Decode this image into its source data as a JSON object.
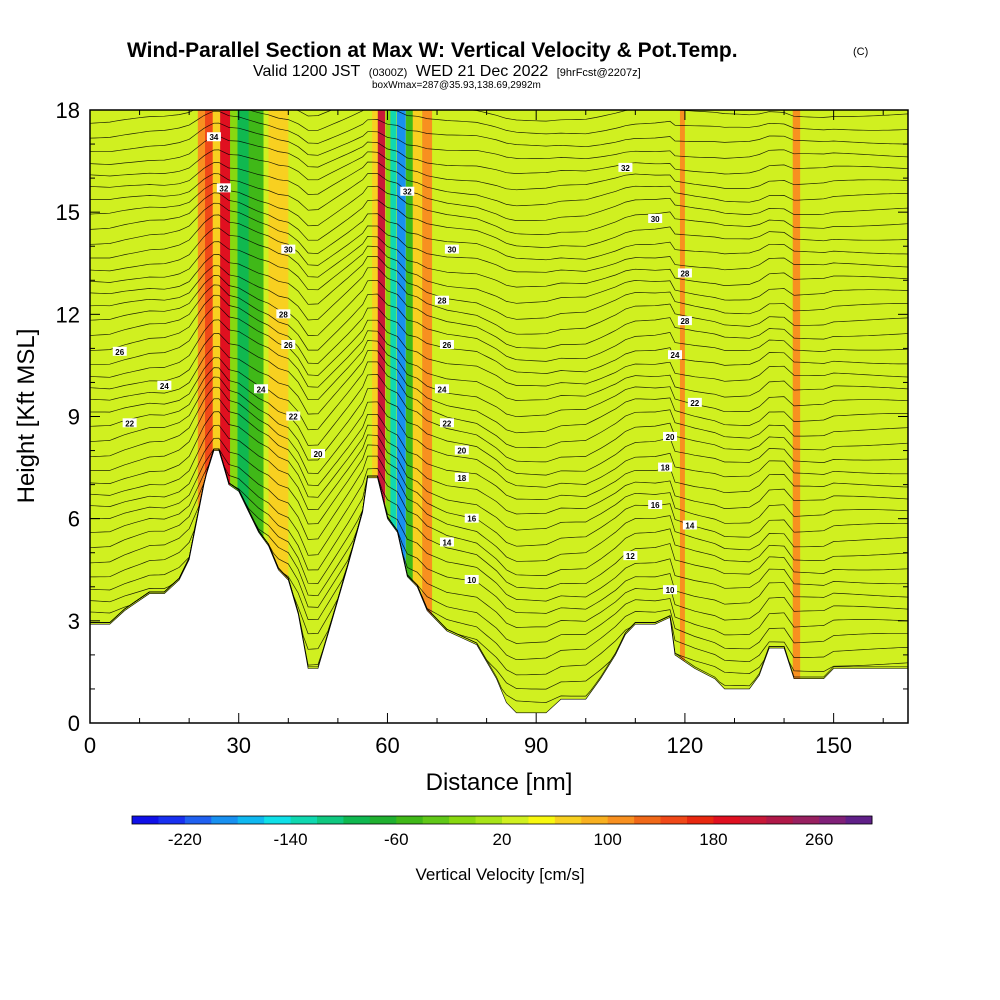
{
  "chart_data": {
    "type": "heatmap",
    "title": "Wind-Parallel Section at Max W: Vertical Velocity & Pot.Temp.",
    "title_mark": "(C)",
    "subtitle": {
      "valid": "Valid 1200 JST",
      "utc": "(0300Z)",
      "date": "WED 21 Dec 2022",
      "run": "[9hrFcst@2207z]"
    },
    "box_info": "boxWmax=287@35.93,138.69,2992m",
    "xlabel": "Distance [nm]",
    "ylabel": "Height [Kft MSL]",
    "xlim": [
      0,
      165
    ],
    "ylim": [
      0,
      18
    ],
    "x_ticks": [
      0,
      30,
      60,
      90,
      120,
      150
    ],
    "y_ticks": [
      0,
      3,
      6,
      9,
      12,
      15,
      18
    ],
    "background_w": 20,
    "terrain": [
      {
        "x": 0,
        "y": 2.9
      },
      {
        "x": 4,
        "y": 2.9
      },
      {
        "x": 7,
        "y": 3.3
      },
      {
        "x": 10,
        "y": 3.6
      },
      {
        "x": 12,
        "y": 3.8
      },
      {
        "x": 15,
        "y": 3.8
      },
      {
        "x": 18,
        "y": 4.2
      },
      {
        "x": 20,
        "y": 4.8
      },
      {
        "x": 23,
        "y": 7.0
      },
      {
        "x": 23.5,
        "y": 7.3
      },
      {
        "x": 25,
        "y": 8.0
      },
      {
        "x": 26,
        "y": 8.0
      },
      {
        "x": 27,
        "y": 7.5
      },
      {
        "x": 28,
        "y": 7.0
      },
      {
        "x": 30,
        "y": 6.8
      },
      {
        "x": 32,
        "y": 6.2
      },
      {
        "x": 34,
        "y": 5.6
      },
      {
        "x": 36,
        "y": 5.2
      },
      {
        "x": 38,
        "y": 4.5
      },
      {
        "x": 40,
        "y": 4.2
      },
      {
        "x": 42,
        "y": 3.2
      },
      {
        "x": 43,
        "y": 2.4
      },
      {
        "x": 44,
        "y": 1.6
      },
      {
        "x": 46,
        "y": 1.6
      },
      {
        "x": 48,
        "y": 2.6
      },
      {
        "x": 50,
        "y": 3.6
      },
      {
        "x": 52,
        "y": 4.6
      },
      {
        "x": 55,
        "y": 6.2
      },
      {
        "x": 56,
        "y": 7.2
      },
      {
        "x": 58,
        "y": 7.2
      },
      {
        "x": 60,
        "y": 6.0
      },
      {
        "x": 62,
        "y": 5.6
      },
      {
        "x": 64,
        "y": 4.3
      },
      {
        "x": 66,
        "y": 4.0
      },
      {
        "x": 68,
        "y": 3.3
      },
      {
        "x": 70,
        "y": 3.0
      },
      {
        "x": 72,
        "y": 2.7
      },
      {
        "x": 75,
        "y": 2.5
      },
      {
        "x": 78,
        "y": 2.3
      },
      {
        "x": 80,
        "y": 1.8
      },
      {
        "x": 82,
        "y": 1.3
      },
      {
        "x": 84,
        "y": 0.6
      },
      {
        "x": 86,
        "y": 0.3
      },
      {
        "x": 92,
        "y": 0.3
      },
      {
        "x": 95,
        "y": 0.7
      },
      {
        "x": 100,
        "y": 0.7
      },
      {
        "x": 103,
        "y": 1.3
      },
      {
        "x": 106,
        "y": 2.0
      },
      {
        "x": 108,
        "y": 2.6
      },
      {
        "x": 110,
        "y": 2.9
      },
      {
        "x": 114,
        "y": 2.9
      },
      {
        "x": 117,
        "y": 3.1
      },
      {
        "x": 118,
        "y": 2.0
      },
      {
        "x": 120,
        "y": 1.8
      },
      {
        "x": 122,
        "y": 1.6
      },
      {
        "x": 126,
        "y": 1.3
      },
      {
        "x": 128,
        "y": 1.0
      },
      {
        "x": 133,
        "y": 1.0
      },
      {
        "x": 135,
        "y": 1.4
      },
      {
        "x": 137,
        "y": 2.2
      },
      {
        "x": 140,
        "y": 2.2
      },
      {
        "x": 142,
        "y": 1.3
      },
      {
        "x": 145,
        "y": 1.3
      },
      {
        "x": 148,
        "y": 1.3
      },
      {
        "x": 150,
        "y": 1.6
      },
      {
        "x": 165,
        "y": 1.6
      }
    ],
    "vertical_velocity_bands": [
      {
        "x": 22.5,
        "width": 1.5,
        "w": 100
      },
      {
        "x": 24.2,
        "width": 2.0,
        "w": 140
      },
      {
        "x": 25.5,
        "width": 1.5,
        "w": 60
      },
      {
        "x": 27.5,
        "width": 2.5,
        "w": 180
      },
      {
        "x": 29.5,
        "width": 2.5,
        "w": -20
      },
      {
        "x": 31.0,
        "width": 2.5,
        "w": -100
      },
      {
        "x": 33.5,
        "width": 3.0,
        "w": -60
      },
      {
        "x": 38.0,
        "width": 4.0,
        "w": 60
      },
      {
        "x": 57.5,
        "width": 1.2,
        "w": 60
      },
      {
        "x": 58.8,
        "width": 1.5,
        "w": 200
      },
      {
        "x": 60.3,
        "width": 1.2,
        "w": -20
      },
      {
        "x": 61.2,
        "width": 1.2,
        "w": -140
      },
      {
        "x": 62.8,
        "width": 1.8,
        "w": -200
      },
      {
        "x": 64.5,
        "width": 1.5,
        "w": -60
      },
      {
        "x": 66.0,
        "width": 1.8,
        "w": 60
      },
      {
        "x": 68.0,
        "width": 2.0,
        "w": 100
      },
      {
        "x": 119.5,
        "width": 1.0,
        "w": 100
      },
      {
        "x": 142.5,
        "width": 1.5,
        "w": 100
      }
    ],
    "theta_contour_labels": [
      {
        "label": "34",
        "x": 25,
        "y": 17.2
      },
      {
        "label": "32",
        "x": 27,
        "y": 15.7
      },
      {
        "label": "30",
        "x": 40,
        "y": 13.9
      },
      {
        "label": "28",
        "x": 39,
        "y": 12.0
      },
      {
        "label": "26",
        "x": 40,
        "y": 11.1
      },
      {
        "label": "24",
        "x": 34.5,
        "y": 9.8
      },
      {
        "label": "22",
        "x": 41,
        "y": 9.0
      },
      {
        "label": "20",
        "x": 46,
        "y": 7.9
      },
      {
        "label": "26",
        "x": 6,
        "y": 10.9
      },
      {
        "label": "24",
        "x": 15,
        "y": 9.9
      },
      {
        "label": "22",
        "x": 8,
        "y": 8.8
      },
      {
        "label": "32",
        "x": 64,
        "y": 15.6
      },
      {
        "label": "30",
        "x": 73,
        "y": 13.9
      },
      {
        "label": "28",
        "x": 71,
        "y": 12.4
      },
      {
        "label": "26",
        "x": 72,
        "y": 11.1
      },
      {
        "label": "24",
        "x": 71,
        "y": 9.8
      },
      {
        "label": "22",
        "x": 72,
        "y": 8.8
      },
      {
        "label": "20",
        "x": 75,
        "y": 8.0
      },
      {
        "label": "18",
        "x": 75,
        "y": 7.2
      },
      {
        "label": "16",
        "x": 77,
        "y": 6.0
      },
      {
        "label": "14",
        "x": 72,
        "y": 5.3
      },
      {
        "label": "10",
        "x": 77,
        "y": 4.2
      },
      {
        "label": "32",
        "x": 108,
        "y": 16.3
      },
      {
        "label": "30",
        "x": 114,
        "y": 14.8
      },
      {
        "label": "28",
        "x": 120,
        "y": 13.2
      },
      {
        "label": "28",
        "x": 120,
        "y": 11.8
      },
      {
        "label": "24",
        "x": 118,
        "y": 10.8
      },
      {
        "label": "22",
        "x": 122,
        "y": 9.4
      },
      {
        "label": "20",
        "x": 117,
        "y": 8.4
      },
      {
        "label": "18",
        "x": 116,
        "y": 7.5
      },
      {
        "label": "16",
        "x": 114,
        "y": 6.4
      },
      {
        "label": "14",
        "x": 121,
        "y": 5.8
      },
      {
        "label": "12",
        "x": 109,
        "y": 4.9
      },
      {
        "label": "10",
        "x": 117,
        "y": 3.9
      }
    ],
    "colorbar": {
      "label": "Vertical Velocity [cm/s]",
      "boundaries": [
        -260,
        -240,
        -220,
        -200,
        -180,
        -160,
        -140,
        -120,
        -100,
        -80,
        -60,
        -40,
        -20,
        0,
        20,
        40,
        60,
        80,
        100,
        120,
        140,
        160,
        180,
        200,
        220,
        240,
        260,
        280,
        300
      ],
      "colors": [
        "#1010e8",
        "#1830f0",
        "#2060f0",
        "#1890f0",
        "#10b8f0",
        "#10e0e8",
        "#10d8b0",
        "#10c880",
        "#10b850",
        "#20b030",
        "#40b818",
        "#60c818",
        "#88d810",
        "#a8e418",
        "#d0f020",
        "#f8f810",
        "#f8d020",
        "#f8b020",
        "#f89020",
        "#f06818",
        "#f04818",
        "#e82810",
        "#e01020",
        "#c81838",
        "#b01848",
        "#982060",
        "#802078",
        "#602088"
      ],
      "tick_labels": [
        {
          "label": "-220",
          "value": -220
        },
        {
          "label": "-140",
          "value": -140
        },
        {
          "label": "-60",
          "value": -60
        },
        {
          "label": "20",
          "value": 20
        },
        {
          "label": "100",
          "value": 100
        },
        {
          "label": "180",
          "value": 180
        },
        {
          "label": "260",
          "value": 260
        }
      ]
    }
  }
}
